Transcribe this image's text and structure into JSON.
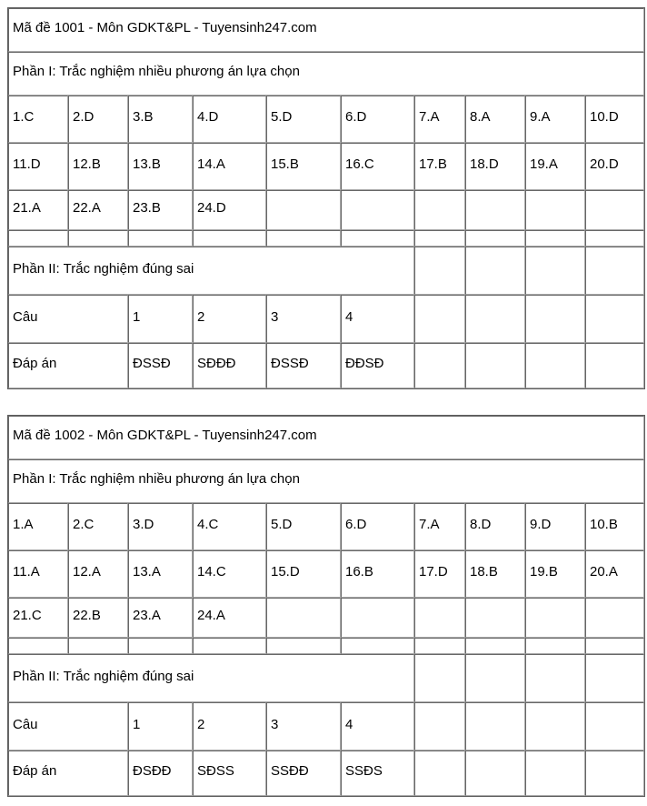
{
  "tables": [
    {
      "title": "Mã đề 1001 - Môn GDKT&PL - Tuyensinh247.com",
      "part1_label": "Phần I: Trắc nghiệm nhiều phương án lựa chọn",
      "part1_rows": [
        [
          "1.C",
          "2.D",
          "3.B",
          "4.D",
          "5.D",
          "6.D",
          "7.A",
          "8.A",
          "9.A",
          "10.D"
        ],
        [
          "11.D",
          "12.B",
          "13.B",
          "14.A",
          "15.B",
          "16.C",
          "17.B",
          "18.D",
          "19.A",
          "20.D"
        ],
        [
          "21.A",
          "22.A",
          "23.B",
          "24.D",
          "",
          "",
          "",
          "",
          "",
          ""
        ]
      ],
      "part2_label": "Phần II: Trắc nghiệm đúng sai",
      "cau_label": "Câu",
      "cau_numbers": [
        "1",
        "2",
        "3",
        "4"
      ],
      "dapan_label": "Đáp án",
      "dapan_values": [
        "ĐSSĐ",
        "SĐĐĐ",
        "ĐSSĐ",
        "ĐĐSĐ"
      ]
    },
    {
      "title": "Mã đề 1002 - Môn GDKT&PL - Tuyensinh247.com",
      "part1_label": "Phần I: Trắc nghiệm nhiều phương án lựa chọn",
      "part1_rows": [
        [
          "1.A",
          "2.C",
          "3.D",
          "4.C",
          "5.D",
          "6.D",
          "7.A",
          "8.D",
          "9.D",
          "10.B"
        ],
        [
          "11.A",
          "12.A",
          "13.A",
          "14.C",
          "15.D",
          "16.B",
          "17.D",
          "18.B",
          "19.B",
          "20.A"
        ],
        [
          "21.C",
          "22.B",
          "23.A",
          "24.A",
          "",
          "",
          "",
          "",
          "",
          ""
        ]
      ],
      "part2_label": "Phần II: Trắc nghiệm đúng sai",
      "cau_label": "Câu",
      "cau_numbers": [
        "1",
        "2",
        "3",
        "4"
      ],
      "dapan_label": "Đáp án",
      "dapan_values": [
        "ĐSĐĐ",
        "SĐSS",
        "SSĐĐ",
        "SSĐS"
      ]
    }
  ]
}
